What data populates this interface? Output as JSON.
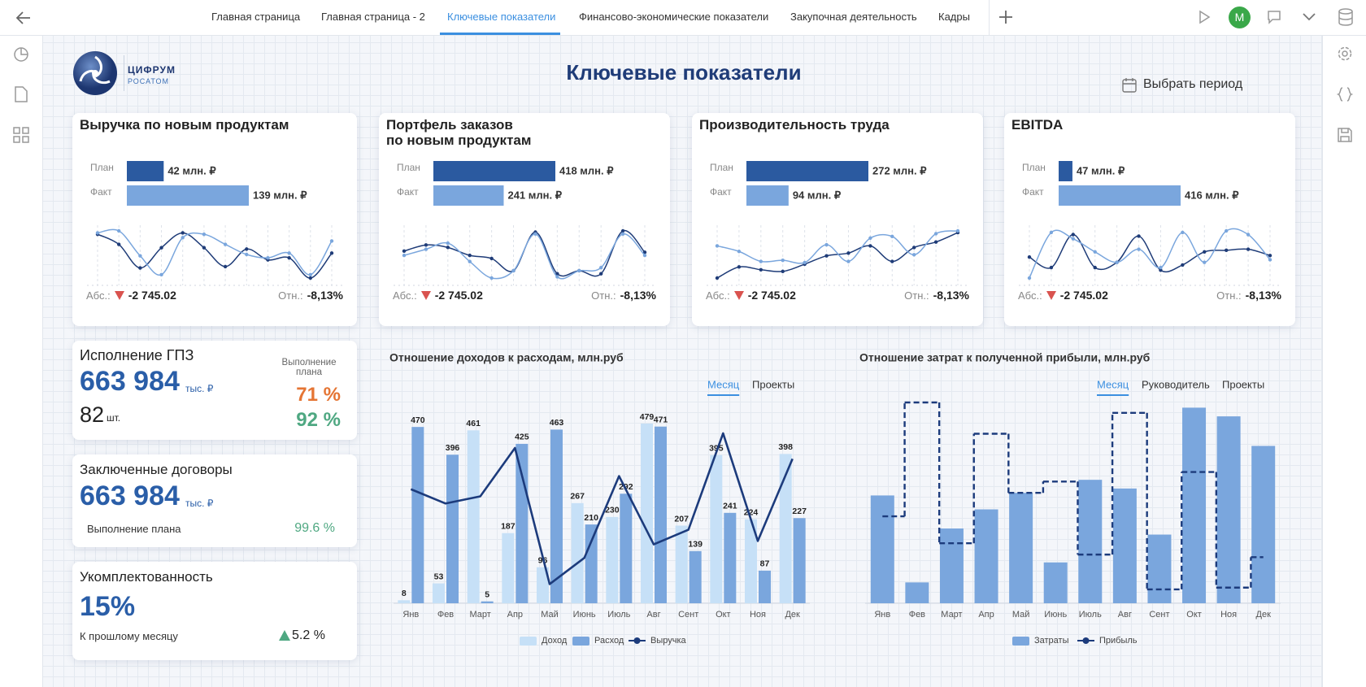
{
  "nav": {
    "tabs": [
      "Главная страница",
      "Главная страница - 2",
      "Ключевые показатели",
      "Финансово-экономические показатели",
      "Закупочная деятельность",
      "Кадры"
    ],
    "avatar": "М"
  },
  "logo": {
    "name": "ЦИФРУМ",
    "org": "РОСАТОМ"
  },
  "header": {
    "title": "Ключевые показатели",
    "period_button": "Выбрать период"
  },
  "kpi_cards": [
    {
      "title": [
        "Выручка по новым продуктам"
      ],
      "abs_label": "Абс.:",
      "abs_value": "-2 745.02",
      "rel_label": "Отн.:",
      "rel_value": "-8,13%"
    },
    {
      "title": [
        "Портфель заказов",
        "по новым продуктам"
      ],
      "abs_label": "Абс.:",
      "abs_value": "-2 745.02",
      "rel_label": "Отн.:",
      "rel_value": "-8,13%"
    },
    {
      "title": [
        "Производительность труда"
      ],
      "abs_label": "Абс.:",
      "abs_value": "-2 745.02",
      "rel_label": "Отн.:",
      "rel_value": "-8,13%"
    },
    {
      "title": [
        "EBITDA"
      ],
      "abs_label": "Абс.:",
      "abs_value": "-2 745.02",
      "rel_label": "Отн.:",
      "rel_value": "-8,13%"
    }
  ],
  "gpz": {
    "title": "Исполнение ГПЗ",
    "amount": "663 984",
    "amount_unit": "тыс. ₽",
    "count": "82",
    "count_unit": "шт.",
    "plan_label": "Выполнение плана",
    "plan_values": [
      "71 %",
      "92 %"
    ]
  },
  "contracts": {
    "title": "Заключенные договоры",
    "amount": "663 984",
    "amount_unit": "тыс. ₽",
    "plan_label": "Выполнение плана",
    "plan_value": "99.6 %"
  },
  "staffing": {
    "title": "Укомплектованность",
    "value": "15%",
    "change_label": "К прошлому месяцу",
    "change_value": "5.2 %"
  },
  "chart_data": [
    {
      "type": "hbar",
      "categories": [
        "План",
        "Факт"
      ],
      "values": [
        42,
        139
      ],
      "value_labels": [
        "42 млн. ₽",
        "139 млн. ₽"
      ],
      "colors": [
        "#2b5aa0",
        "#7aa6dd"
      ]
    },
    {
      "type": "hbar",
      "categories": [
        "План",
        "Факт"
      ],
      "values": [
        418,
        241
      ],
      "value_labels": [
        "418 млн. ₽",
        "241 млн. ₽"
      ],
      "colors": [
        "#2b5aa0",
        "#7aa6dd"
      ]
    },
    {
      "type": "hbar",
      "categories": [
        "План",
        "Факт"
      ],
      "values": [
        272,
        94
      ],
      "value_labels": [
        "272 млн. ₽",
        "94 млн. ₽"
      ],
      "colors": [
        "#2b5aa0",
        "#7aa6dd"
      ]
    },
    {
      "type": "hbar",
      "categories": [
        "План",
        "Факт"
      ],
      "values": [
        47,
        416
      ],
      "value_labels": [
        "47 млн. ₽",
        "416 млн. ₽"
      ],
      "colors": [
        "#2b5aa0",
        "#7aa6dd"
      ]
    },
    {
      "type": "line",
      "series": [
        {
          "color": "#1f3c78",
          "values": [
            90,
            75,
            40,
            70,
            92,
            70,
            42,
            68,
            52,
            55,
            25,
            62
          ]
        },
        {
          "color": "#7aa6dd",
          "values": [
            92,
            95,
            58,
            30,
            85,
            90,
            75,
            60,
            55,
            62,
            30,
            80
          ]
        }
      ]
    },
    {
      "type": "line",
      "series": [
        {
          "color": "#1f3c78",
          "values": [
            62,
            72,
            68,
            55,
            50,
            30,
            93,
            25,
            30,
            25,
            95,
            60
          ]
        },
        {
          "color": "#7aa6dd",
          "values": [
            55,
            65,
            75,
            45,
            18,
            30,
            90,
            20,
            30,
            35,
            90,
            55
          ]
        }
      ]
    },
    {
      "type": "line",
      "series": [
        {
          "color": "#1f3c78",
          "values": [
            10,
            30,
            25,
            22,
            35,
            50,
            55,
            68,
            40,
            65,
            75,
            92
          ]
        },
        {
          "color": "#7aa6dd",
          "values": [
            68,
            58,
            40,
            42,
            38,
            70,
            40,
            82,
            85,
            52,
            90,
            95
          ]
        }
      ]
    },
    {
      "type": "line",
      "series": [
        {
          "color": "#1f3c78",
          "values": [
            45,
            25,
            88,
            25,
            35,
            85,
            20,
            30,
            55,
            58,
            60,
            48
          ]
        },
        {
          "color": "#7aa6dd",
          "values": [
            5,
            92,
            80,
            55,
            35,
            60,
            25,
            92,
            35,
            95,
            88,
            40
          ]
        }
      ]
    },
    {
      "type": "bar_line",
      "title": "Отношение доходов к расходам, млн.руб",
      "tabs": [
        "Месяц",
        "Проекты"
      ],
      "categories": [
        "Янв",
        "Фев",
        "Март",
        "Апр",
        "Май",
        "Июнь",
        "Июль",
        "Авг",
        "Сент",
        "Окт",
        "Ноя",
        "Дек"
      ],
      "series": [
        {
          "name": "Доход",
          "type": "bar",
          "color": "#c6e0f7",
          "values": [
            8,
            53,
            461,
            187,
            96,
            267,
            230,
            479,
            207,
            395,
            224,
            398
          ]
        },
        {
          "name": "Расход",
          "type": "bar",
          "color": "#7aa6dd",
          "values": [
            470,
            396,
            5,
            425,
            463,
            210,
            292,
            471,
            139,
            241,
            87,
            227
          ]
        },
        {
          "name": "Выручка",
          "type": "line",
          "color": "#1c3b7c",
          "values": [
            304,
            266,
            285,
            414,
            51,
            121,
            339,
            157,
            196,
            453,
            166,
            385
          ]
        }
      ]
    },
    {
      "type": "bar_step",
      "title": "Отношение затрат к полученной прибыли, млн.руб",
      "tabs": [
        "Месяц",
        "Руководитель",
        "Проекты"
      ],
      "categories": [
        "Янв",
        "Фев",
        "Март",
        "Апр",
        "Май",
        "Июнь",
        "Июль",
        "Авг",
        "Сент",
        "Окт",
        "Ноя",
        "Дек"
      ],
      "series": [
        {
          "name": "Затраты",
          "type": "bar",
          "color": "#7aa6dd",
          "values": [
            124,
            24,
            86,
            108,
            127,
            47,
            142,
            132,
            79,
            225,
            215,
            181
          ]
        },
        {
          "name": "Прибыль",
          "type": "step",
          "color": "#1c3b7c",
          "values": [
            100,
            231,
            69,
            195,
            127,
            140,
            56,
            219,
            16,
            151,
            18,
            53
          ]
        }
      ]
    }
  ]
}
